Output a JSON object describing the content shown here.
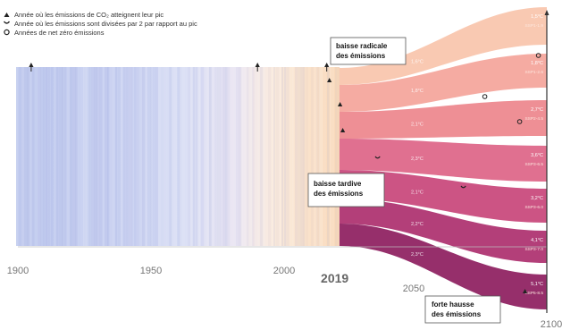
{
  "legend": {
    "peak_label": "Année où les émissions de CO₂ atteignent leur pic",
    "halved_label": "Année où les émissions sont divisées par 2 par rapport au pic",
    "netzero_label": "Années de net zéro émissions"
  },
  "axis": {
    "ticks": [
      {
        "value": 1900,
        "label": "1900"
      },
      {
        "value": 1950,
        "label": "1950"
      },
      {
        "value": 2000,
        "label": "2000"
      },
      {
        "value": 2019,
        "label": "2019"
      },
      {
        "value": 2050,
        "label": "2050"
      },
      {
        "value": 2100,
        "label": "2100"
      }
    ],
    "emphasized": "2019"
  },
  "annotations": [
    {
      "text": "baisse radicale des émissions"
    },
    {
      "text": "baisse tardive des émissions"
    },
    {
      "text": "forte hausse des émissions"
    }
  ],
  "chart_data": {
    "type": "area",
    "xlim": [
      1900,
      2100
    ],
    "scenarios": [
      {
        "temp": "1,5°C",
        "name": "SSP1-1.9",
        "mid_temp": "1,6°C",
        "peak_year": 2025,
        "halved_year": 2040
      },
      {
        "temp": "1,8°C",
        "name": "SSP1-2.6",
        "mid_temp": "1,8°C",
        "peak_year": 2025,
        "halved_year": 2048
      },
      {
        "temp": "2,7°C",
        "name": "SSP2-4.5",
        "mid_temp": "2,1°C",
        "peak_year": 2025
      },
      {
        "temp": "3,6°C",
        "name": "SSP3-6.5",
        "mid_temp": "2,3°C",
        "peak_year": 2040
      },
      {
        "temp": "3,2°C",
        "name": "SSP3-6.0",
        "mid_temp": "2,1°C",
        "peak_year": 2050
      },
      {
        "temp": "4,1°C",
        "name": "SSP3-7.0",
        "mid_temp": "2,2°C"
      },
      {
        "temp": "5,1°C",
        "name": "SSP5-8.5",
        "mid_temp": "2,3°C"
      }
    ],
    "historical_markers": [
      {
        "year": 1905,
        "type": "halved"
      },
      {
        "year": 1990,
        "type": "halved"
      },
      {
        "year": 2016,
        "type": "halved"
      }
    ],
    "events": [
      {
        "year": 2017,
        "type": "peak"
      },
      {
        "year": 2021,
        "type": "peak"
      },
      {
        "year": 2022,
        "type": "peak"
      },
      {
        "year": 2035,
        "type": "halved"
      },
      {
        "year": 2067,
        "type": "halved"
      },
      {
        "year": 2075,
        "type": "net_zero"
      },
      {
        "year": 2088,
        "type": "net_zero"
      },
      {
        "year": 2095,
        "type": "net_zero"
      },
      {
        "year": 2090,
        "type": "peak"
      }
    ]
  }
}
